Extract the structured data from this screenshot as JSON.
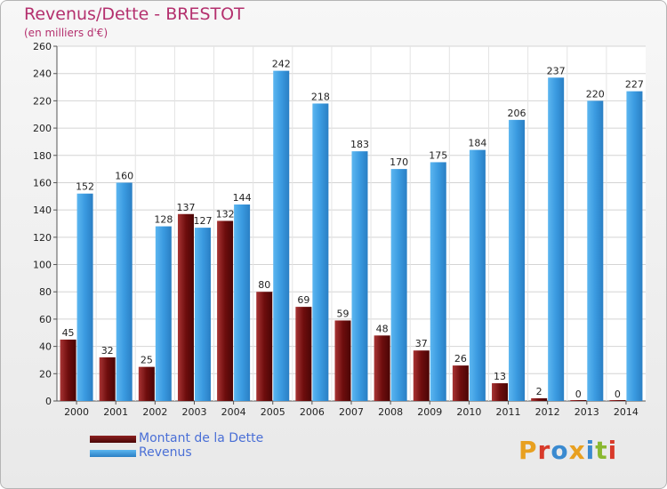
{
  "title": "Revenus/Dette - BRESTOT",
  "subtitle": "(en milliers d'€)",
  "legend": {
    "dette_label": "Montant de la Dette",
    "revenus_label": "Revenus"
  },
  "logo": {
    "text": "Proxiti"
  },
  "colors": {
    "dette": "#7a1414",
    "revenus": "#3a9ae0",
    "title": "#b4306e",
    "legend_text": "#4a6fd6"
  },
  "chart_data": {
    "type": "bar",
    "title": "Revenus/Dette - BRESTOT",
    "ylabel": "(en milliers d'€)",
    "xlabel": "",
    "categories": [
      "2000",
      "2001",
      "2002",
      "2003",
      "2004",
      "2005",
      "2006",
      "2007",
      "2008",
      "2009",
      "2010",
      "2011",
      "2012",
      "2013",
      "2014"
    ],
    "series": [
      {
        "name": "Montant de la Dette",
        "values": [
          45,
          32,
          25,
          137,
          132,
          80,
          69,
          59,
          48,
          37,
          26,
          13,
          2,
          0,
          0
        ]
      },
      {
        "name": "Revenus",
        "values": [
          152,
          160,
          128,
          127,
          144,
          242,
          218,
          183,
          170,
          175,
          184,
          206,
          237,
          220,
          227
        ]
      }
    ],
    "ylim": [
      0,
      260
    ],
    "yticks": [
      0,
      20,
      40,
      60,
      80,
      100,
      120,
      140,
      160,
      180,
      200,
      220,
      240,
      260
    ],
    "grid": true,
    "legend_position": "bottom-left"
  }
}
